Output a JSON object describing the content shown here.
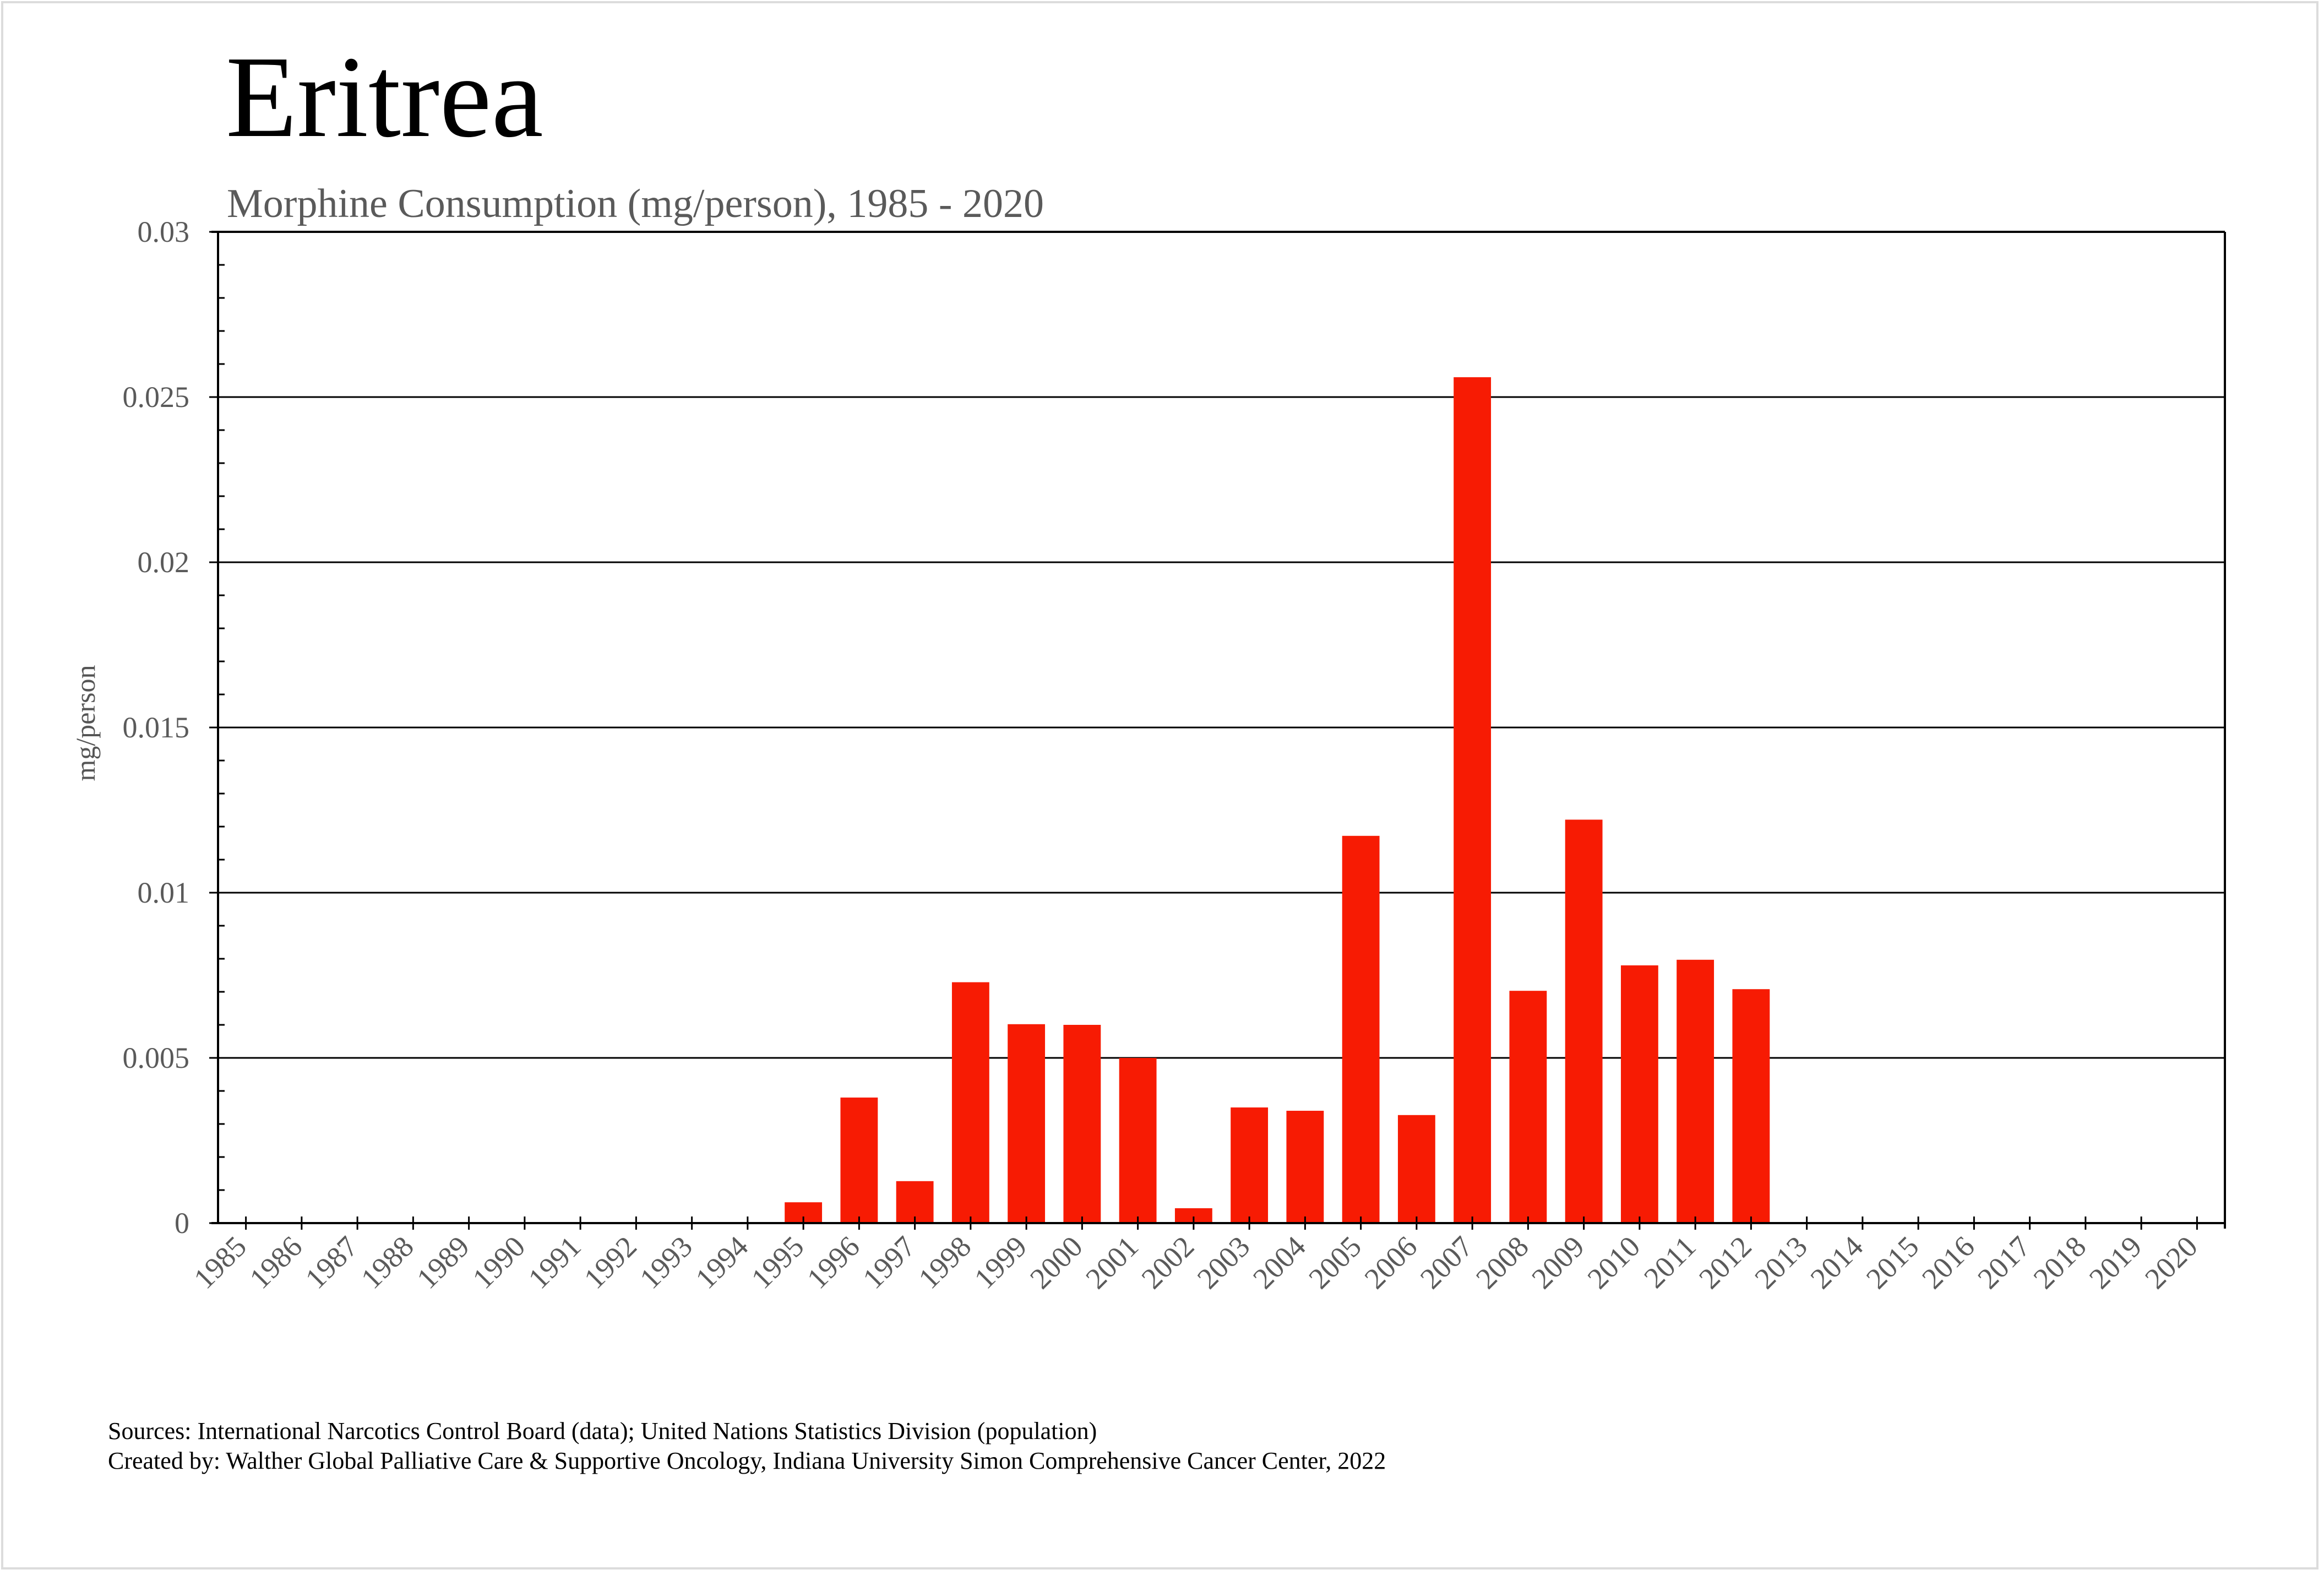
{
  "colors": {
    "bar": "#F71B03",
    "grid": "#000000",
    "axis": "#000000",
    "tick_label": "#5a5a5a",
    "frame": "#dcdcdc"
  },
  "footer": {
    "sources": "Sources: International Narcotics Control Board (data); United Nations Statistics Division (population)",
    "created_by": "Created by: Walther  Global Palliative Care & Supportive Oncology, Indiana University Simon Comprehensive Cancer Center, 2022"
  },
  "chart_data": {
    "type": "bar",
    "title": "Eritrea",
    "subtitle": "Morphine Consumption (mg/person), 1985 - 2020",
    "xlabel": "",
    "ylabel": "mg/person",
    "ylim": [
      0,
      0.03
    ],
    "yticks": [
      0,
      0.005,
      0.01,
      0.015,
      0.02,
      0.025,
      0.03
    ],
    "ytick_labels": [
      "0",
      "0.005",
      "0.01",
      "0.015",
      "0.02",
      "0.025",
      "0.03"
    ],
    "y_minor_step": 0.001,
    "grid": true,
    "legend": "none",
    "categories": [
      "1985",
      "1986",
      "1987",
      "1988",
      "1989",
      "1990",
      "1991",
      "1992",
      "1993",
      "1994",
      "1995",
      "1996",
      "1997",
      "1998",
      "1999",
      "2000",
      "2001",
      "2002",
      "2003",
      "2004",
      "2005",
      "2006",
      "2007",
      "2008",
      "2009",
      "2010",
      "2011",
      "2012",
      "2013",
      "2014",
      "2015",
      "2016",
      "2017",
      "2018",
      "2019",
      "2020"
    ],
    "series": [
      {
        "name": "Morphine Consumption (mg/person)",
        "values": [
          0,
          0,
          0,
          0,
          0,
          0,
          0,
          0,
          0,
          0,
          0.00063,
          0.0038,
          0.00127,
          0.00729,
          0.00602,
          0.006,
          0.005,
          0.00045,
          0.0035,
          0.0034,
          0.01172,
          0.00327,
          0.0256,
          0.00703,
          0.01221,
          0.0078,
          0.00797,
          0.00708,
          0,
          0,
          0,
          0,
          0,
          0,
          0,
          0
        ]
      }
    ]
  }
}
